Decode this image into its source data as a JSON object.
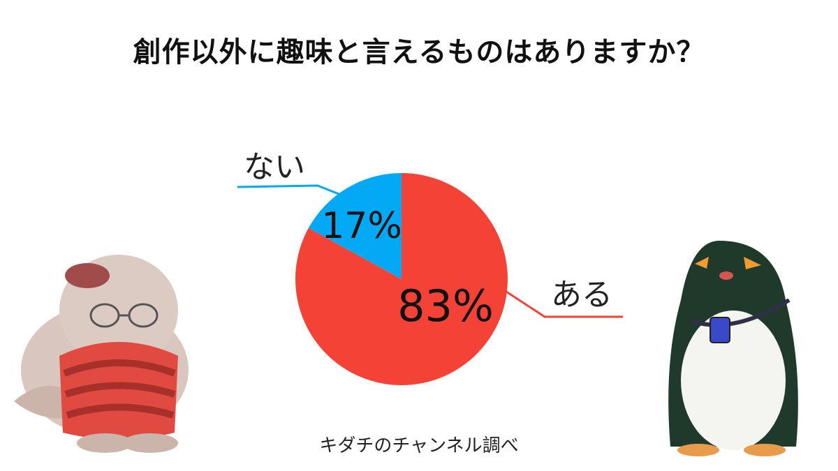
{
  "title": "創作以外に趣味と言えるものはありますか？",
  "source": "キダチのチャンネル調べ",
  "colors": {
    "ari": "#f44336",
    "nai": "#03a9f4"
  },
  "illustrations": {
    "left": "seal-character-icon",
    "right": "penguin-character-icon"
  },
  "chart_data": {
    "type": "pie",
    "title": "創作以外に趣味と言えるものはありますか？",
    "categories": [
      "ある",
      "ない"
    ],
    "values": [
      83,
      17
    ],
    "value_labels": [
      "83%",
      "17%"
    ],
    "start": "12 o'clock, clockwise",
    "legend": "none"
  }
}
